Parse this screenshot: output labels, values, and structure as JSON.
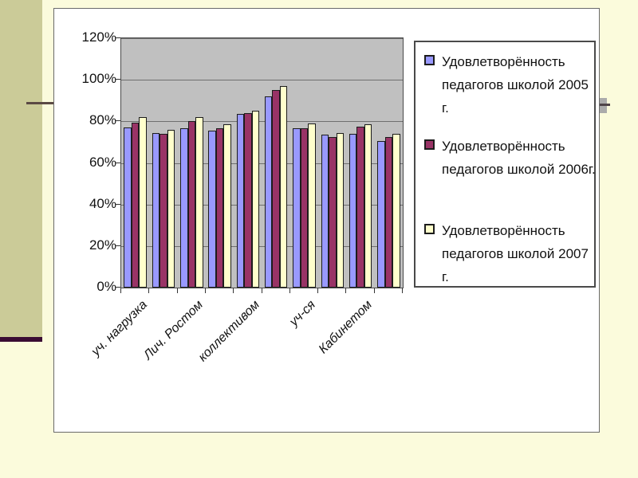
{
  "slide": {
    "background": "#FBFBDC",
    "accent_bar_color": "#CBCB98",
    "accent_underline_color": "#3A0C33",
    "divider_line_color": "#5B4A44",
    "handle_fill_color": "#ABABAB",
    "handle_line_color": "#4F4448"
  },
  "chart_data": {
    "type": "bar",
    "title": "",
    "xlabel": "",
    "ylabel": "",
    "plot_bg": "#C0C0C0",
    "gridline_color": "#6F6F6F",
    "grid": true,
    "legend_position": "right",
    "ylim": [
      0,
      120
    ],
    "y_ticks": [
      "0%",
      "20%",
      "40%",
      "60%",
      "80%",
      "100%",
      "120%"
    ],
    "categories": [
      "уч. нагрузка",
      "",
      "Лич. Ростом",
      "",
      "коллективом",
      "",
      "уч-ся",
      "",
      "Кабинетом",
      ""
    ],
    "series": [
      {
        "name": "Удовлетворённость педагогов школой 2005 г.",
        "color": "#9999FF",
        "values": [
          77,
          74.5,
          76.5,
          75.5,
          83.5,
          92,
          76.5,
          73.5,
          74,
          70.5
        ]
      },
      {
        "name": "Удовлетворённость педагогов школой 2006г.",
        "color": "#993366",
        "values": [
          79.5,
          74,
          80,
          76.5,
          84,
          95,
          76.5,
          72.5,
          77.5,
          72.5
        ]
      },
      {
        "name": "Удовлетворённость педагогов школой 2007 г.",
        "color": "#FFFFCC",
        "values": [
          82,
          76,
          82,
          78.5,
          85,
          97,
          79,
          74.5,
          78.5,
          74
        ]
      }
    ]
  }
}
